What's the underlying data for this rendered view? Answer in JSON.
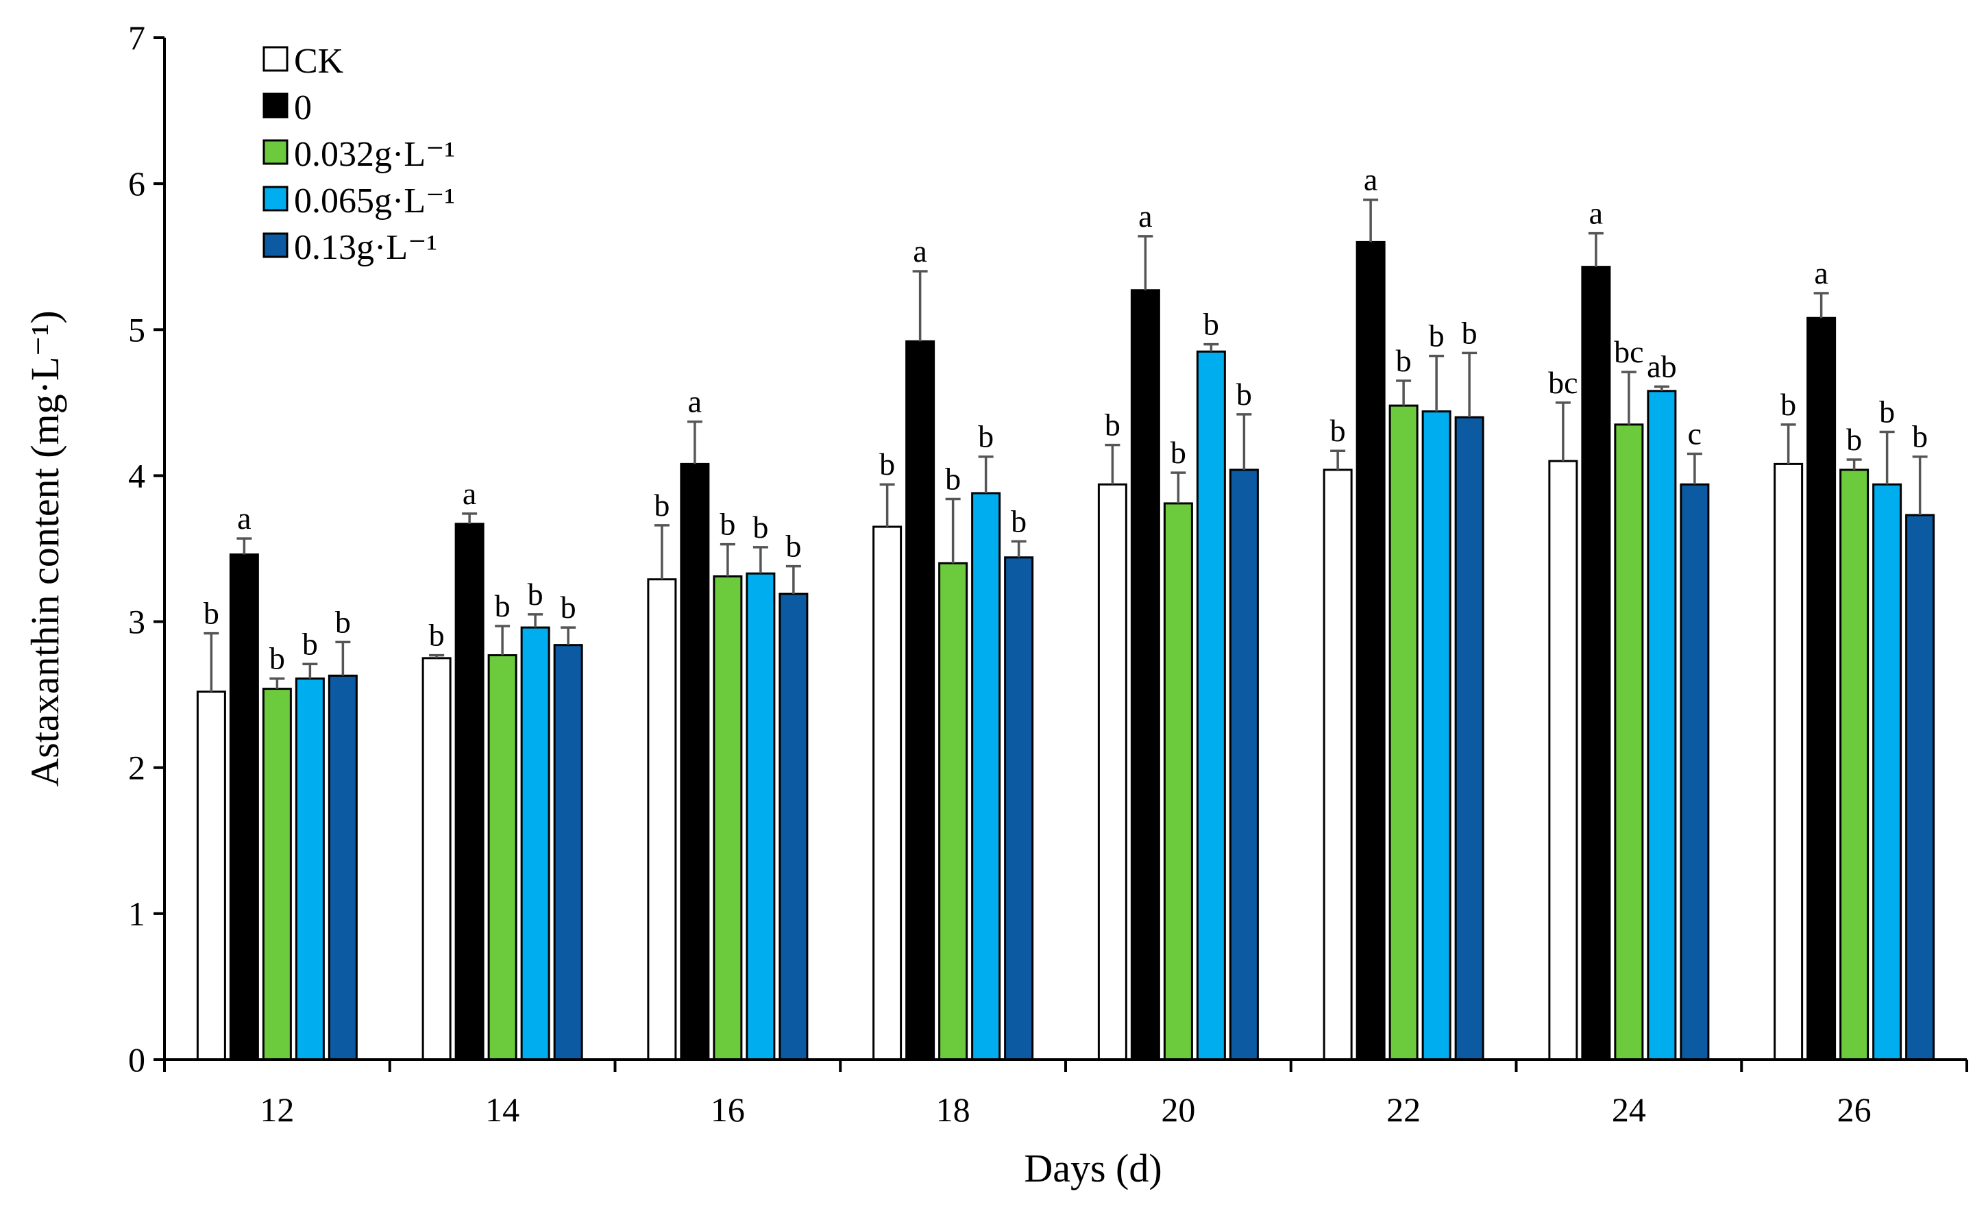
{
  "chart_data": {
    "type": "bar",
    "xlabel": "Days (d)",
    "ylabel": "Astaxanthin content (mg·L⁻¹)",
    "ylim": [
      0,
      7
    ],
    "yticks": [
      "0",
      "1",
      "2",
      "3",
      "4",
      "5",
      "6",
      "7"
    ],
    "categories": [
      "12",
      "14",
      "16",
      "18",
      "20",
      "22",
      "24",
      "26"
    ],
    "grid": false,
    "legend_position": "top-left",
    "series": [
      {
        "name": "CK",
        "color": "#FFFFFF",
        "values": [
          2.52,
          2.75,
          3.29,
          3.65,
          3.94,
          4.04,
          4.1,
          4.08
        ],
        "errors": [
          0.4,
          0.02,
          0.37,
          0.29,
          0.27,
          0.13,
          0.4,
          0.27
        ],
        "labels": [
          "b",
          "b",
          "b",
          "b",
          "b",
          "b",
          "bc",
          "b"
        ]
      },
      {
        "name": "0",
        "color": "#000000",
        "values": [
          3.46,
          3.67,
          4.08,
          4.92,
          5.27,
          5.6,
          5.43,
          5.08
        ],
        "errors": [
          0.11,
          0.07,
          0.29,
          0.48,
          0.37,
          0.29,
          0.23,
          0.17
        ],
        "labels": [
          "a",
          "a",
          "a",
          "a",
          "a",
          "a",
          "a",
          "a"
        ]
      },
      {
        "name": "0.032g·L⁻¹",
        "color": "#6CCB3D",
        "values": [
          2.54,
          2.77,
          3.31,
          3.4,
          3.81,
          4.48,
          4.35,
          4.04
        ],
        "errors": [
          0.07,
          0.2,
          0.22,
          0.44,
          0.21,
          0.17,
          0.36,
          0.07
        ],
        "labels": [
          "b",
          "b",
          "b",
          "b",
          "b",
          "b",
          "bc",
          "b"
        ]
      },
      {
        "name": "0.065g·L⁻¹",
        "color": "#00AEEF",
        "values": [
          2.61,
          2.96,
          3.33,
          3.88,
          4.85,
          4.44,
          4.58,
          3.94
        ],
        "errors": [
          0.1,
          0.09,
          0.18,
          0.25,
          0.05,
          0.38,
          0.03,
          0.36
        ],
        "labels": [
          "b",
          "b",
          "b",
          "b",
          "b",
          "b",
          "ab",
          "b"
        ]
      },
      {
        "name": "0.13g·L⁻¹",
        "color": "#0B5AA2",
        "values": [
          2.63,
          2.84,
          3.19,
          3.44,
          4.04,
          4.4,
          3.94,
          3.73
        ],
        "errors": [
          0.23,
          0.12,
          0.19,
          0.11,
          0.38,
          0.44,
          0.21,
          0.4
        ],
        "labels": [
          "b",
          "b",
          "b",
          "b",
          "b",
          "b",
          "c",
          "b"
        ]
      }
    ]
  }
}
